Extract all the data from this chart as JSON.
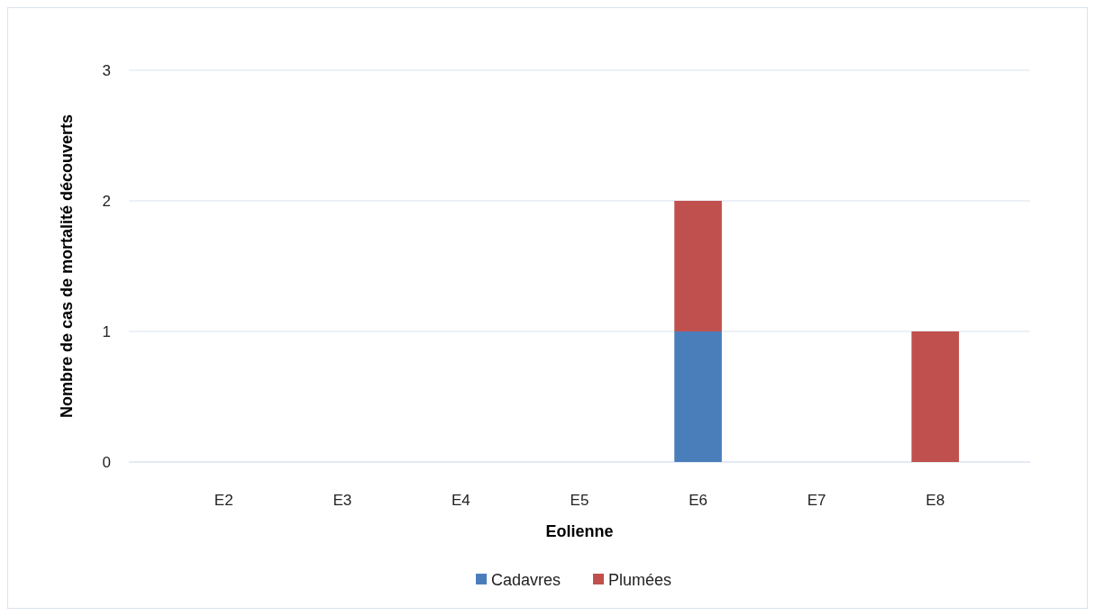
{
  "chart_data": {
    "type": "bar",
    "stacked": true,
    "categories": [
      "E2",
      "E3",
      "E4",
      "E5",
      "E6",
      "E7",
      "E8"
    ],
    "series": [
      {
        "name": "Cadavres",
        "color": "#4a7ebb",
        "values": [
          0,
          0,
          0,
          0,
          1,
          0,
          0
        ]
      },
      {
        "name": "Plumées",
        "color": "#c0504d",
        "values": [
          0,
          0,
          0,
          0,
          1,
          0,
          1
        ]
      }
    ],
    "xlabel": "Eolienne",
    "ylabel": "Nombre de cas de mortalité découverts",
    "ylim": [
      0,
      3
    ],
    "yticks": [
      0,
      1,
      2,
      3
    ],
    "grid": "y",
    "legend": "bottom"
  }
}
